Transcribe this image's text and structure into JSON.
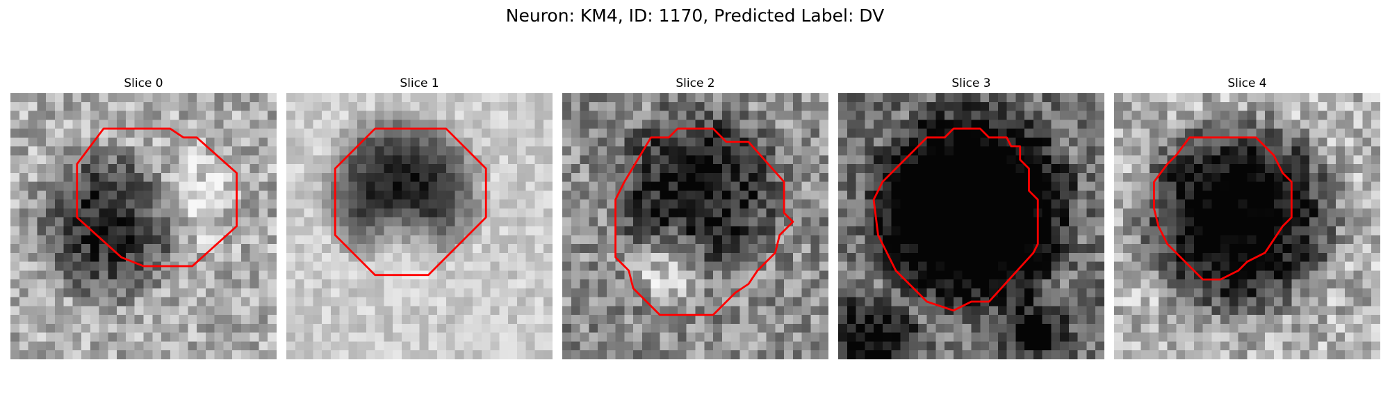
{
  "figure": {
    "title": "Neuron: KM4, ID: 1170, Predicted Label: DV"
  },
  "outline_color": "#ff0000",
  "colormap": "gray",
  "slices": [
    {
      "title": "Slice 0"
    },
    {
      "title": "Slice 1"
    },
    {
      "title": "Slice 2"
    },
    {
      "title": "Slice 3"
    },
    {
      "title": "Slice 4"
    }
  ]
}
